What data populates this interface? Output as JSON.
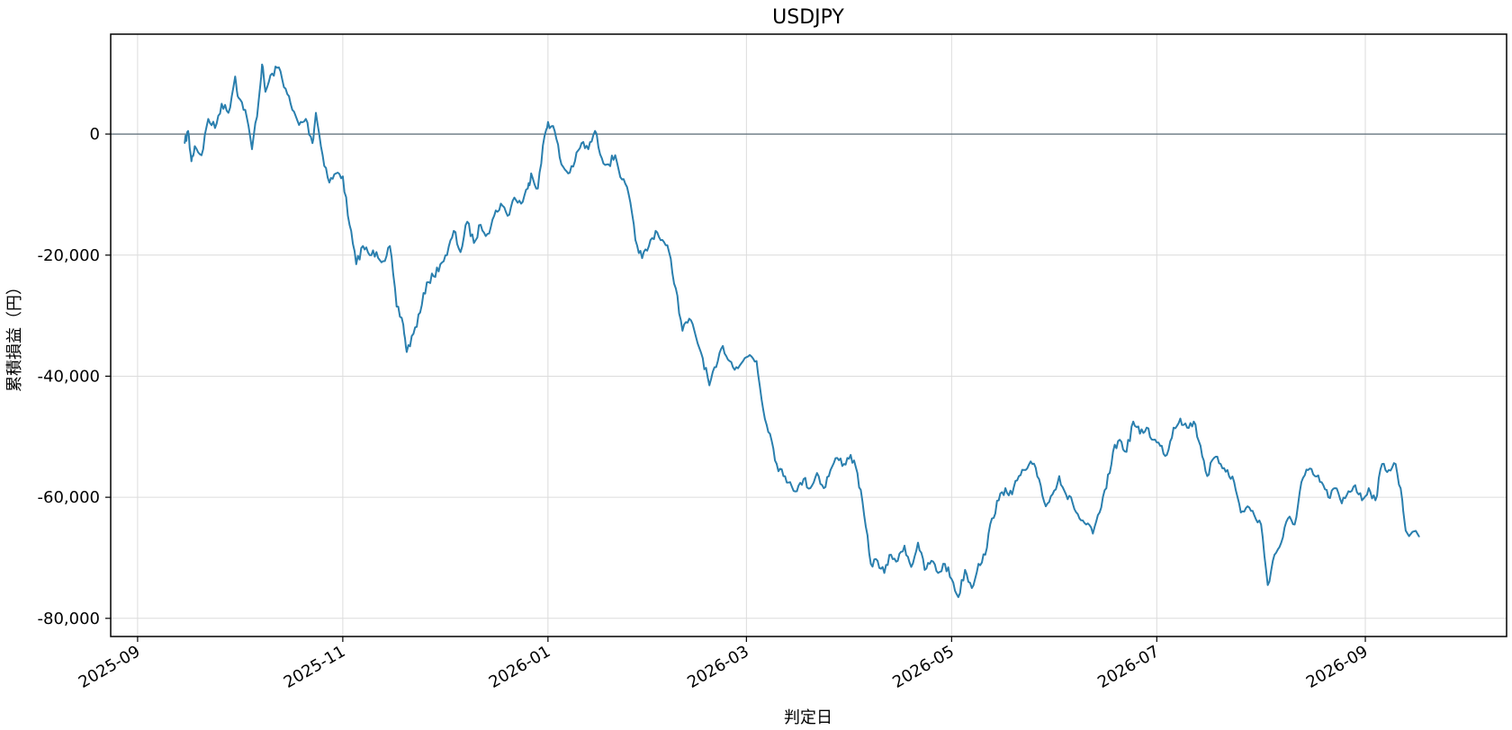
{
  "chart_data": {
    "type": "line",
    "title": "USDJPY",
    "xlabel": "判定日",
    "ylabel": "累積損益（円）",
    "x_type": "date",
    "xlim": [
      "2025-08-24",
      "2026-10-13"
    ],
    "ylim": [
      -83000,
      16500
    ],
    "grid": true,
    "x_ticks": [
      "2025-09-01",
      "2025-11-01",
      "2026-01-01",
      "2026-03-01",
      "2026-05-01",
      "2026-07-01",
      "2026-09-01"
    ],
    "x_tick_labels": [
      "2025-09",
      "2025-11",
      "2026-01",
      "2026-03",
      "2026-05",
      "2026-07",
      "2026-09"
    ],
    "y_ticks": [
      0,
      -20000,
      -40000,
      -60000,
      -80000
    ],
    "y_tick_labels": [
      "0",
      "-20,000",
      "-40,000",
      "-60,000",
      "-80,000"
    ],
    "reference_line": {
      "y": 0,
      "color": "#5a6b77"
    },
    "series": [
      {
        "color": "#2a7fae",
        "points": [
          [
            "2025-09-15",
            -1500
          ],
          [
            "2025-09-16",
            500
          ],
          [
            "2025-09-17",
            -4500
          ],
          [
            "2025-09-18",
            -2000
          ],
          [
            "2025-09-20",
            -3500
          ],
          [
            "2025-09-22",
            2500
          ],
          [
            "2025-09-24",
            1000
          ],
          [
            "2025-09-26",
            5000
          ],
          [
            "2025-09-28",
            3500
          ],
          [
            "2025-09-30",
            9500
          ],
          [
            "2025-10-01",
            6000
          ],
          [
            "2025-10-03",
            4000
          ],
          [
            "2025-10-05",
            -2500
          ],
          [
            "2025-10-07",
            5500
          ],
          [
            "2025-10-08",
            11500
          ],
          [
            "2025-10-09",
            7000
          ],
          [
            "2025-10-11",
            10000
          ],
          [
            "2025-10-13",
            11000
          ],
          [
            "2025-10-15",
            7500
          ],
          [
            "2025-10-17",
            4000
          ],
          [
            "2025-10-19",
            1500
          ],
          [
            "2025-10-21",
            2500
          ],
          [
            "2025-10-23",
            -1500
          ],
          [
            "2025-10-24",
            3500
          ],
          [
            "2025-10-26",
            -3500
          ],
          [
            "2025-10-28",
            -8000
          ],
          [
            "2025-10-30",
            -6500
          ],
          [
            "2025-11-01",
            -7000
          ],
          [
            "2025-11-03",
            -15000
          ],
          [
            "2025-11-05",
            -21500
          ],
          [
            "2025-11-07",
            -18500
          ],
          [
            "2025-11-09",
            -20000
          ],
          [
            "2025-11-11",
            -19500
          ],
          [
            "2025-11-13",
            -21000
          ],
          [
            "2025-11-15",
            -18500
          ],
          [
            "2025-11-17",
            -28500
          ],
          [
            "2025-11-19",
            -31500
          ],
          [
            "2025-11-20",
            -36000
          ],
          [
            "2025-11-22",
            -33000
          ],
          [
            "2025-11-24",
            -29500
          ],
          [
            "2025-11-26",
            -24500
          ],
          [
            "2025-11-28",
            -23500
          ],
          [
            "2025-11-30",
            -21500
          ],
          [
            "2025-12-02",
            -20000
          ],
          [
            "2025-12-04",
            -16000
          ],
          [
            "2025-12-06",
            -19500
          ],
          [
            "2025-12-08",
            -14500
          ],
          [
            "2025-12-10",
            -18000
          ],
          [
            "2025-12-12",
            -15000
          ],
          [
            "2025-12-14",
            -16500
          ],
          [
            "2025-12-16",
            -13500
          ],
          [
            "2025-12-18",
            -11500
          ],
          [
            "2025-12-20",
            -13500
          ],
          [
            "2025-12-22",
            -10500
          ],
          [
            "2025-12-24",
            -11500
          ],
          [
            "2025-12-26",
            -9000
          ],
          [
            "2025-12-27",
            -6500
          ],
          [
            "2025-12-29",
            -9000
          ],
          [
            "2025-12-31",
            -300
          ],
          [
            "2026-01-01",
            2000
          ],
          [
            "2026-01-03",
            500
          ],
          [
            "2026-01-05",
            -5000
          ],
          [
            "2026-01-07",
            -6500
          ],
          [
            "2026-01-09",
            -4500
          ],
          [
            "2026-01-11",
            -1500
          ],
          [
            "2026-01-13",
            -2500
          ],
          [
            "2026-01-15",
            500
          ],
          [
            "2026-01-17",
            -4000
          ],
          [
            "2026-01-19",
            -5000
          ],
          [
            "2026-01-21",
            -3500
          ],
          [
            "2026-01-23",
            -7500
          ],
          [
            "2026-01-25",
            -10000
          ],
          [
            "2026-01-27",
            -17500
          ],
          [
            "2026-01-29",
            -20500
          ],
          [
            "2026-01-31",
            -18500
          ],
          [
            "2026-02-02",
            -16000
          ],
          [
            "2026-02-04",
            -17500
          ],
          [
            "2026-02-06",
            -19500
          ],
          [
            "2026-02-08",
            -25500
          ],
          [
            "2026-02-10",
            -32500
          ],
          [
            "2026-02-12",
            -30500
          ],
          [
            "2026-02-14",
            -33500
          ],
          [
            "2026-02-16",
            -37000
          ],
          [
            "2026-02-18",
            -41500
          ],
          [
            "2026-02-20",
            -38500
          ],
          [
            "2026-02-22",
            -35000
          ],
          [
            "2026-02-24",
            -37500
          ],
          [
            "2026-02-26",
            -38500
          ],
          [
            "2026-02-28",
            -37500
          ],
          [
            "2026-03-02",
            -36500
          ],
          [
            "2026-03-04",
            -37500
          ],
          [
            "2026-03-06",
            -45500
          ],
          [
            "2026-03-08",
            -49500
          ],
          [
            "2026-03-10",
            -54500
          ],
          [
            "2026-03-12",
            -56500
          ],
          [
            "2026-03-14",
            -57500
          ],
          [
            "2026-03-16",
            -59000
          ],
          [
            "2026-03-18",
            -57000
          ],
          [
            "2026-03-20",
            -58500
          ],
          [
            "2026-03-22",
            -56000
          ],
          [
            "2026-03-24",
            -58500
          ],
          [
            "2026-03-26",
            -55500
          ],
          [
            "2026-03-28",
            -53500
          ],
          [
            "2026-03-30",
            -54500
          ],
          [
            "2026-04-01",
            -53000
          ],
          [
            "2026-04-03",
            -56000
          ],
          [
            "2026-04-05",
            -63000
          ],
          [
            "2026-04-07",
            -71000
          ],
          [
            "2026-04-09",
            -70500
          ],
          [
            "2026-04-11",
            -72500
          ],
          [
            "2026-04-13",
            -69500
          ],
          [
            "2026-04-15",
            -70500
          ],
          [
            "2026-04-17",
            -68000
          ],
          [
            "2026-04-19",
            -71500
          ],
          [
            "2026-04-21",
            -67500
          ],
          [
            "2026-04-23",
            -72000
          ],
          [
            "2026-04-25",
            -70500
          ],
          [
            "2026-04-27",
            -72500
          ],
          [
            "2026-04-29",
            -71000
          ],
          [
            "2026-05-01",
            -73500
          ],
          [
            "2026-05-03",
            -76500
          ],
          [
            "2026-05-05",
            -72000
          ],
          [
            "2026-05-07",
            -75000
          ],
          [
            "2026-05-09",
            -71000
          ],
          [
            "2026-05-11",
            -69500
          ],
          [
            "2026-05-13",
            -63500
          ],
          [
            "2026-05-15",
            -60500
          ],
          [
            "2026-05-17",
            -58500
          ],
          [
            "2026-05-19",
            -59500
          ],
          [
            "2026-05-21",
            -56500
          ],
          [
            "2026-05-23",
            -55500
          ],
          [
            "2026-05-25",
            -54500
          ],
          [
            "2026-05-27",
            -57000
          ],
          [
            "2026-05-29",
            -61500
          ],
          [
            "2026-05-31",
            -59500
          ],
          [
            "2026-06-02",
            -56500
          ],
          [
            "2026-06-04",
            -59500
          ],
          [
            "2026-06-06",
            -61000
          ],
          [
            "2026-06-08",
            -63500
          ],
          [
            "2026-06-10",
            -64500
          ],
          [
            "2026-06-12",
            -66000
          ],
          [
            "2026-06-14",
            -62500
          ],
          [
            "2026-06-16",
            -58500
          ],
          [
            "2026-06-18",
            -52500
          ],
          [
            "2026-06-20",
            -50500
          ],
          [
            "2026-06-22",
            -52500
          ],
          [
            "2026-06-24",
            -47500
          ],
          [
            "2026-06-26",
            -49500
          ],
          [
            "2026-06-28",
            -48500
          ],
          [
            "2026-06-30",
            -50500
          ],
          [
            "2026-07-02",
            -51500
          ],
          [
            "2026-07-04",
            -53000
          ],
          [
            "2026-07-06",
            -48500
          ],
          [
            "2026-07-08",
            -47000
          ],
          [
            "2026-07-10",
            -48500
          ],
          [
            "2026-07-12",
            -47500
          ],
          [
            "2026-07-14",
            -51500
          ],
          [
            "2026-07-16",
            -56500
          ],
          [
            "2026-07-18",
            -53500
          ],
          [
            "2026-07-20",
            -54500
          ],
          [
            "2026-07-22",
            -55500
          ],
          [
            "2026-07-24",
            -57500
          ],
          [
            "2026-07-26",
            -62500
          ],
          [
            "2026-07-28",
            -61500
          ],
          [
            "2026-07-30",
            -63000
          ],
          [
            "2026-08-01",
            -64500
          ],
          [
            "2026-08-03",
            -74500
          ],
          [
            "2026-08-05",
            -69500
          ],
          [
            "2026-08-07",
            -67500
          ],
          [
            "2026-08-09",
            -63500
          ],
          [
            "2026-08-11",
            -64500
          ],
          [
            "2026-08-13",
            -57500
          ],
          [
            "2026-08-15",
            -55500
          ],
          [
            "2026-08-17",
            -56500
          ],
          [
            "2026-08-19",
            -57500
          ],
          [
            "2026-08-21",
            -60000
          ],
          [
            "2026-08-23",
            -58500
          ],
          [
            "2026-08-25",
            -61000
          ],
          [
            "2026-08-27",
            -59000
          ],
          [
            "2026-08-29",
            -58000
          ],
          [
            "2026-08-31",
            -60500
          ],
          [
            "2026-09-02",
            -58500
          ],
          [
            "2026-09-04",
            -60500
          ],
          [
            "2026-09-06",
            -54500
          ],
          [
            "2026-09-08",
            -55500
          ],
          [
            "2026-09-10",
            -54500
          ],
          [
            "2026-09-12",
            -60500
          ],
          [
            "2026-09-13",
            -65500
          ],
          [
            "2026-09-17",
            -66500
          ]
        ]
      }
    ]
  }
}
